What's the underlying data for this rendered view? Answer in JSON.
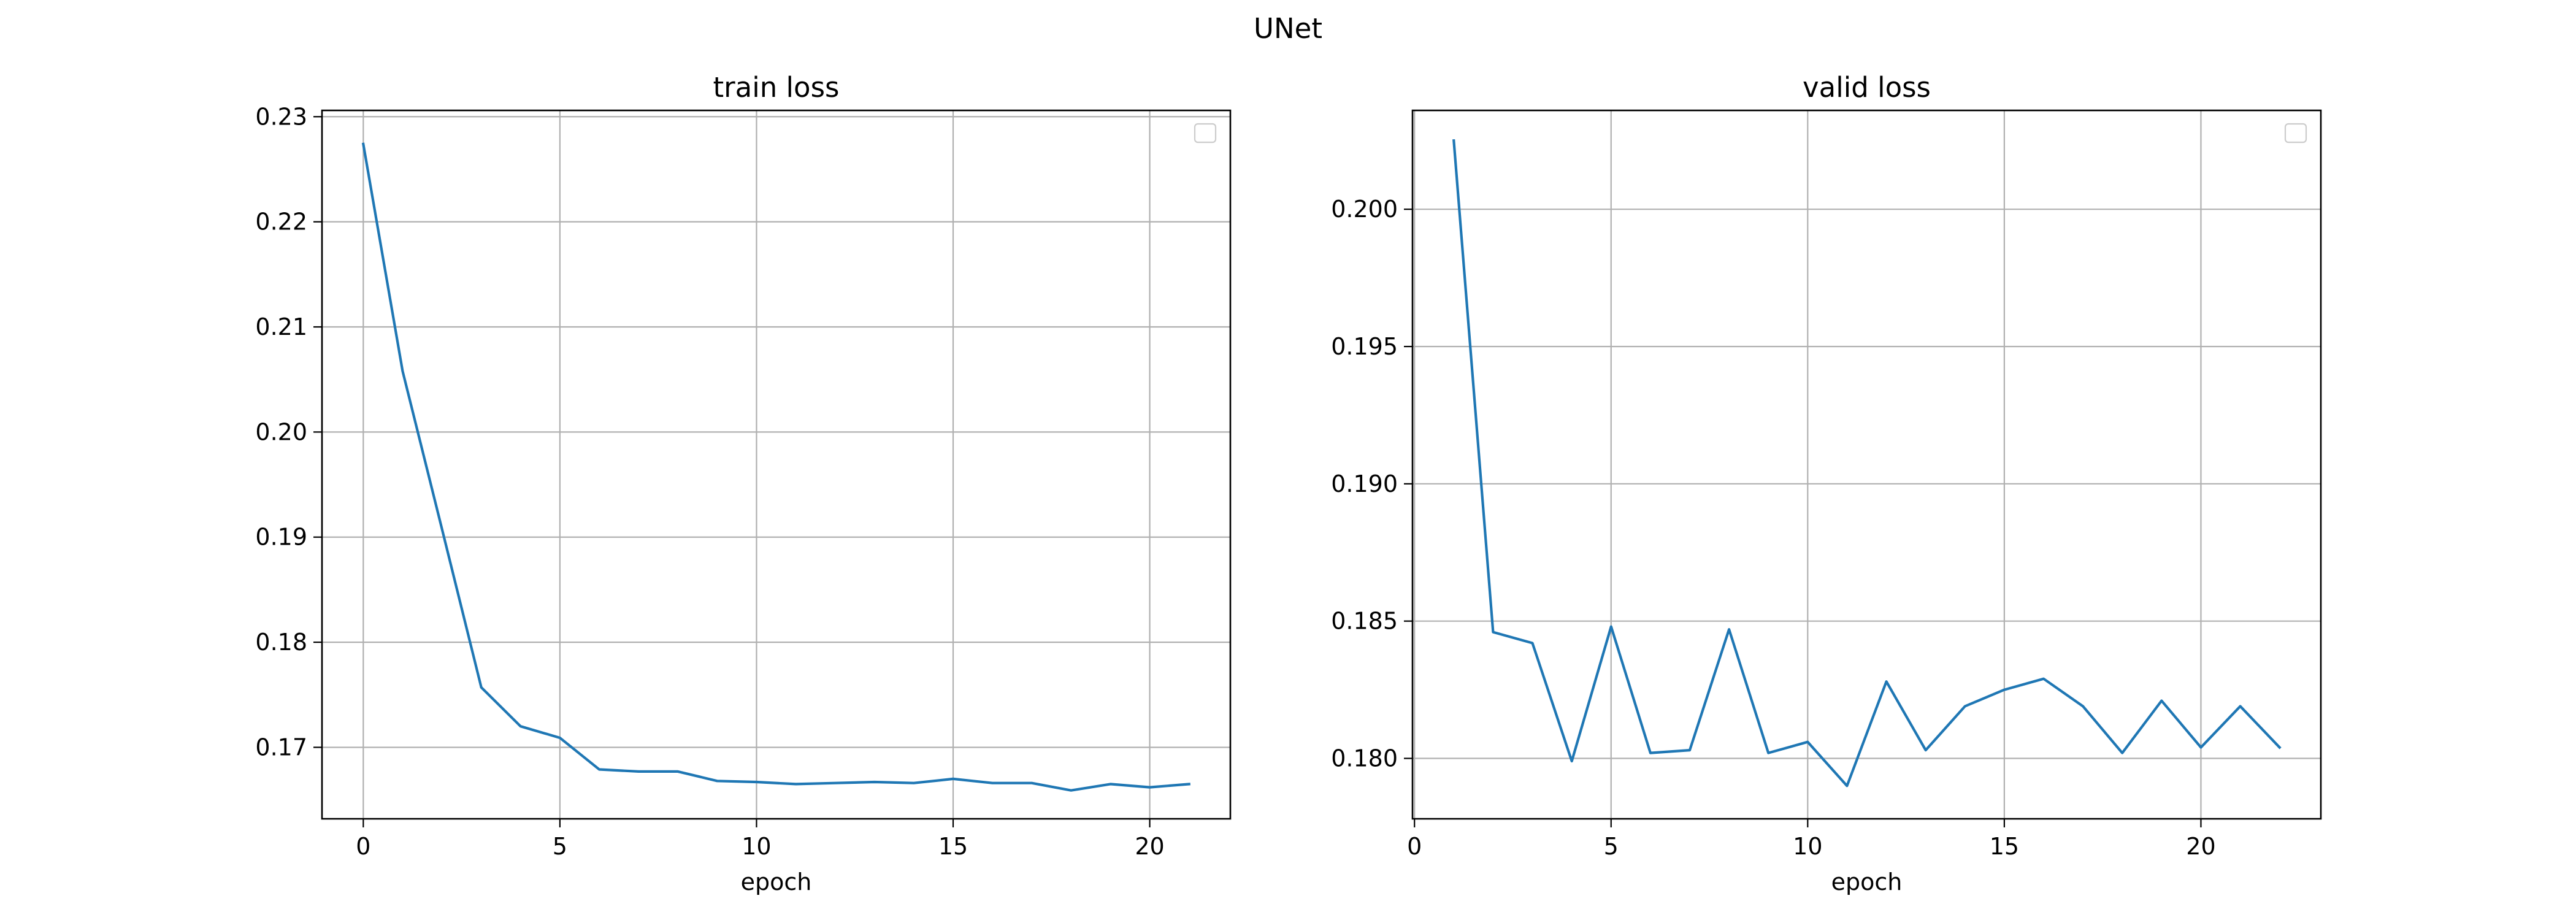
{
  "figure": {
    "suptitle": "UNet"
  },
  "chart_data": [
    {
      "type": "line",
      "title": "train loss",
      "xlabel": "epoch",
      "ylabel": "",
      "xlim": [
        -1.05,
        22.05
      ],
      "ylim": [
        0.1632,
        0.2306
      ],
      "xticks": [
        0,
        5,
        10,
        15,
        20
      ],
      "yticks": [
        0.17,
        0.18,
        0.19,
        0.2,
        0.21,
        0.22,
        0.23
      ],
      "ytick_labels": [
        "0.17",
        "0.18",
        "0.19",
        "0.20",
        "0.21",
        "0.22",
        "0.23"
      ],
      "grid": true,
      "legend": "upper right (empty)",
      "series": [
        {
          "color": "#1f77b4",
          "x": [
            0,
            1,
            2,
            3,
            4,
            5,
            6,
            7,
            8,
            9,
            10,
            11,
            12,
            13,
            14,
            15,
            16,
            17,
            18,
            19,
            20,
            21
          ],
          "values": [
            0.2274,
            0.2058,
            0.1908,
            0.1757,
            0.172,
            0.1709,
            0.1679,
            0.1677,
            0.1677,
            0.1668,
            0.1667,
            0.1665,
            0.1666,
            0.1667,
            0.1666,
            0.167,
            0.1666,
            0.1666,
            0.1659,
            0.1665,
            0.1662,
            0.1665
          ]
        }
      ]
    },
    {
      "type": "line",
      "title": "valid loss",
      "xlabel": "epoch",
      "ylabel": "",
      "xlim": [
        -0.05,
        23.05
      ],
      "ylim": [
        0.1778,
        0.2036
      ],
      "xticks": [
        0,
        5,
        10,
        15,
        20
      ],
      "yticks": [
        0.18,
        0.185,
        0.19,
        0.195,
        0.2
      ],
      "ytick_labels": [
        "0.180",
        "0.185",
        "0.190",
        "0.195",
        "0.200"
      ],
      "grid": true,
      "legend": "upper right (empty)",
      "series": [
        {
          "color": "#1f77b4",
          "x": [
            1,
            2,
            3,
            4,
            5,
            6,
            7,
            8,
            9,
            10,
            11,
            12,
            13,
            14,
            15,
            16,
            17,
            18,
            19,
            20,
            21,
            22
          ],
          "values": [
            0.2025,
            0.1846,
            0.1842,
            0.1799,
            0.1848,
            0.1802,
            0.1803,
            0.1847,
            0.1802,
            0.1806,
            0.179,
            0.1828,
            0.1803,
            0.1819,
            0.1825,
            0.1829,
            0.1819,
            0.1802,
            0.1821,
            0.1804,
            0.1819,
            0.1804
          ]
        }
      ]
    }
  ]
}
